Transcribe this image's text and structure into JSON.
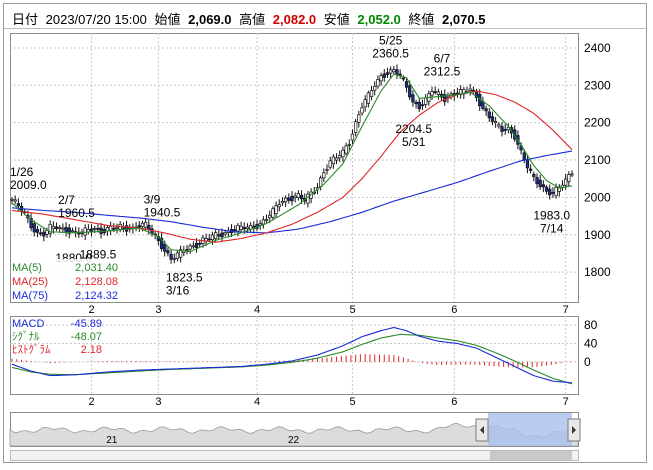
{
  "header": {
    "date_label": "日付",
    "date_value": "2023/07/20 15:00",
    "open_label": "始値",
    "open_value": "2,069.0",
    "high_label": "高値",
    "high_value": "2,082.0",
    "low_label": "安値",
    "low_value": "2,052.0",
    "close_label": "終値",
    "close_value": "2,070.5"
  },
  "colors": {
    "up": "#ffffff",
    "down": "#1f2f8c",
    "high_text": "#cc0000",
    "low_text": "#008800",
    "ma5": "#2a8a2a",
    "ma25": "#e0262a",
    "ma75": "#1a2bd8",
    "macd": "#1a2bd8",
    "signal": "#2a8a2a",
    "hist": "#e0262a",
    "grid": "#c8c8c8",
    "nav_fill": "#a9c1ee"
  },
  "legend_price": [
    {
      "label": "MA(5)",
      "value": "2,031.40",
      "color": "#2a8a2a"
    },
    {
      "label": "MA(25)",
      "value": "2,128.08",
      "color": "#e0262a"
    },
    {
      "label": "MA(75)",
      "value": "2,124.32",
      "color": "#1a2bd8"
    }
  ],
  "legend_macd": [
    {
      "label": "MACD",
      "value": "-45.89",
      "color": "#1a2bd8"
    },
    {
      "label": "ｼｸﾞﾅﾙ",
      "value": "-48.07",
      "color": "#2a8a2a"
    },
    {
      "label": "ﾋｽﾄｸﾞﾗﾑ",
      "value": "2.18",
      "color": "#e0262a"
    }
  ],
  "navigator": {
    "year_labels": [
      {
        "text": "21",
        "x": 0.18
      },
      {
        "text": "22",
        "x": 0.5
      }
    ]
  },
  "chart_data": [
    {
      "type": "candlestick",
      "ylim": [
        1720,
        2440
      ],
      "y_ticks": [
        1800,
        1900,
        2000,
        2100,
        2200,
        2300,
        2400
      ],
      "x_month_labels": [
        {
          "text": "2",
          "day": 25
        },
        {
          "text": "3",
          "day": 46
        },
        {
          "text": "4",
          "day": 77
        },
        {
          "text": "5",
          "day": 107
        },
        {
          "text": "6",
          "day": 139
        },
        {
          "text": "7",
          "day": 174
        }
      ],
      "annotations": [
        {
          "date": "1/26",
          "value": "2009.0",
          "day": 0,
          "price": 2009
        },
        {
          "date": "2/7",
          "value": "1960.5",
          "day": 12,
          "price": 1960.5
        },
        {
          "date": "",
          "value": "1880.0",
          "day": 13,
          "price": 1880
        },
        {
          "date": "",
          "value": "1889.5",
          "day": 20,
          "price": 1889.5
        },
        {
          "date": "3/9",
          "value": "1940.5",
          "day": 42,
          "price": 1940.5
        },
        {
          "date": "3/16",
          "value": "1823.5",
          "day": 49,
          "price": 1823.5
        },
        {
          "date": "5/25",
          "value": "2360.5",
          "day": 119,
          "price": 2360.5
        },
        {
          "date": "6/7",
          "value": "2312.5",
          "day": 132,
          "price": 2312.5
        },
        {
          "date": "5/31",
          "value": "2204.5",
          "day": 125,
          "price": 2204.5
        },
        {
          "date": "7/14",
          "value": "1983.0",
          "day": 169,
          "price": 1983
        }
      ],
      "ohlc_anchors": [
        [
          0,
          1995
        ],
        [
          2,
          1975
        ],
        [
          4,
          1955
        ],
        [
          6,
          1925
        ],
        [
          8,
          1905
        ],
        [
          10,
          1902
        ],
        [
          12,
          1918
        ],
        [
          14,
          1920
        ],
        [
          16,
          1915
        ],
        [
          18,
          1912
        ],
        [
          20,
          1905
        ],
        [
          22,
          1905
        ],
        [
          24,
          1912
        ],
        [
          26,
          1918
        ],
        [
          28,
          1910
        ],
        [
          30,
          1915
        ],
        [
          32,
          1918
        ],
        [
          34,
          1920
        ],
        [
          36,
          1918
        ],
        [
          38,
          1918
        ],
        [
          40,
          1925
        ],
        [
          42,
          1925
        ],
        [
          44,
          1905
        ],
        [
          46,
          1885
        ],
        [
          48,
          1860
        ],
        [
          50,
          1835
        ],
        [
          52,
          1845
        ],
        [
          54,
          1858
        ],
        [
          56,
          1868
        ],
        [
          58,
          1875
        ],
        [
          60,
          1885
        ],
        [
          62,
          1890
        ],
        [
          64,
          1898
        ],
        [
          66,
          1902
        ],
        [
          68,
          1910
        ],
        [
          70,
          1915
        ],
        [
          72,
          1918
        ],
        [
          74,
          1918
        ],
        [
          76,
          1922
        ],
        [
          78,
          1930
        ],
        [
          80,
          1945
        ],
        [
          82,
          1960
        ],
        [
          84,
          1985
        ],
        [
          86,
          1995
        ],
        [
          88,
          2000
        ],
        [
          90,
          2005
        ],
        [
          92,
          1990
        ],
        [
          94,
          2010
        ],
        [
          96,
          2030
        ],
        [
          98,
          2070
        ],
        [
          100,
          2095
        ],
        [
          102,
          2105
        ],
        [
          104,
          2120
        ],
        [
          106,
          2150
        ],
        [
          108,
          2200
        ],
        [
          110,
          2245
        ],
        [
          112,
          2270
        ],
        [
          114,
          2300
        ],
        [
          116,
          2325
        ],
        [
          118,
          2335
        ],
        [
          120,
          2340
        ],
        [
          122,
          2325
        ],
        [
          124,
          2295
        ],
        [
          126,
          2255
        ],
        [
          128,
          2245
        ],
        [
          130,
          2260
        ],
        [
          132,
          2285
        ],
        [
          134,
          2275
        ],
        [
          136,
          2265
        ],
        [
          138,
          2275
        ],
        [
          140,
          2280
        ],
        [
          142,
          2282
        ],
        [
          144,
          2290
        ],
        [
          146,
          2270
        ],
        [
          148,
          2240
        ],
        [
          150,
          2215
        ],
        [
          152,
          2195
        ],
        [
          154,
          2180
        ],
        [
          156,
          2185
        ],
        [
          158,
          2165
        ],
        [
          160,
          2120
        ],
        [
          162,
          2080
        ],
        [
          164,
          2050
        ],
        [
          166,
          2035
        ],
        [
          168,
          2018
        ],
        [
          170,
          2010
        ],
        [
          172,
          2025
        ],
        [
          174,
          2045
        ],
        [
          176,
          2070
        ]
      ],
      "ma5_anchors": [
        [
          0,
          1985
        ],
        [
          6,
          1940
        ],
        [
          12,
          1908
        ],
        [
          20,
          1905
        ],
        [
          30,
          1910
        ],
        [
          40,
          1918
        ],
        [
          46,
          1895
        ],
        [
          50,
          1860
        ],
        [
          56,
          1855
        ],
        [
          64,
          1885
        ],
        [
          72,
          1905
        ],
        [
          80,
          1930
        ],
        [
          90,
          1980
        ],
        [
          98,
          2035
        ],
        [
          104,
          2090
        ],
        [
          110,
          2190
        ],
        [
          116,
          2285
        ],
        [
          120,
          2330
        ],
        [
          124,
          2320
        ],
        [
          128,
          2265
        ],
        [
          134,
          2270
        ],
        [
          140,
          2275
        ],
        [
          144,
          2282
        ],
        [
          150,
          2245
        ],
        [
          156,
          2190
        ],
        [
          160,
          2140
        ],
        [
          164,
          2085
        ],
        [
          168,
          2045
        ],
        [
          172,
          2025
        ],
        [
          176,
          2031
        ]
      ],
      "ma25_anchors": [
        [
          0,
          1965
        ],
        [
          10,
          1955
        ],
        [
          20,
          1940
        ],
        [
          30,
          1925
        ],
        [
          40,
          1918
        ],
        [
          48,
          1905
        ],
        [
          56,
          1888
        ],
        [
          64,
          1880
        ],
        [
          72,
          1890
        ],
        [
          80,
          1905
        ],
        [
          88,
          1928
        ],
        [
          96,
          1960
        ],
        [
          104,
          2000
        ],
        [
          110,
          2050
        ],
        [
          116,
          2110
        ],
        [
          122,
          2175
        ],
        [
          128,
          2220
        ],
        [
          134,
          2255
        ],
        [
          140,
          2275
        ],
        [
          146,
          2285
        ],
        [
          152,
          2275
        ],
        [
          158,
          2255
        ],
        [
          164,
          2225
        ],
        [
          170,
          2180
        ],
        [
          176,
          2128
        ]
      ],
      "ma75_anchors": [
        [
          0,
          1972
        ],
        [
          10,
          1965
        ],
        [
          20,
          1960
        ],
        [
          30,
          1952
        ],
        [
          40,
          1945
        ],
        [
          50,
          1935
        ],
        [
          60,
          1920
        ],
        [
          70,
          1908
        ],
        [
          80,
          1905
        ],
        [
          90,
          1915
        ],
        [
          100,
          1935
        ],
        [
          110,
          1960
        ],
        [
          120,
          1990
        ],
        [
          130,
          2015
        ],
        [
          140,
          2040
        ],
        [
          150,
          2070
        ],
        [
          160,
          2098
        ],
        [
          168,
          2112
        ],
        [
          176,
          2124
        ]
      ]
    },
    {
      "type": "macd",
      "ylim": [
        -70,
        100
      ],
      "y_ticks": [
        0,
        40,
        80
      ],
      "x_month_labels": [
        {
          "text": "2",
          "day": 25
        },
        {
          "text": "3",
          "day": 46
        },
        {
          "text": "4",
          "day": 77
        },
        {
          "text": "5",
          "day": 107
        },
        {
          "text": "6",
          "day": 139
        },
        {
          "text": "7",
          "day": 174
        }
      ],
      "macd_anchors": [
        [
          0,
          -5
        ],
        [
          6,
          -20
        ],
        [
          12,
          -30
        ],
        [
          20,
          -28
        ],
        [
          30,
          -22
        ],
        [
          40,
          -18
        ],
        [
          48,
          -16
        ],
        [
          56,
          -14
        ],
        [
          64,
          -12
        ],
        [
          72,
          -10
        ],
        [
          80,
          -5
        ],
        [
          88,
          2
        ],
        [
          96,
          15
        ],
        [
          104,
          35
        ],
        [
          110,
          55
        ],
        [
          116,
          68
        ],
        [
          120,
          75
        ],
        [
          124,
          68
        ],
        [
          128,
          56
        ],
        [
          134,
          45
        ],
        [
          140,
          40
        ],
        [
          146,
          30
        ],
        [
          152,
          10
        ],
        [
          158,
          -10
        ],
        [
          164,
          -30
        ],
        [
          170,
          -42
        ],
        [
          176,
          -45.89
        ]
      ],
      "signal_anchors": [
        [
          0,
          -12
        ],
        [
          6,
          -22
        ],
        [
          12,
          -27
        ],
        [
          20,
          -28
        ],
        [
          30,
          -24
        ],
        [
          40,
          -20
        ],
        [
          48,
          -17
        ],
        [
          56,
          -15
        ],
        [
          64,
          -13
        ],
        [
          72,
          -11
        ],
        [
          80,
          -7
        ],
        [
          88,
          -1
        ],
        [
          96,
          8
        ],
        [
          104,
          22
        ],
        [
          110,
          38
        ],
        [
          116,
          52
        ],
        [
          122,
          60
        ],
        [
          128,
          58
        ],
        [
          134,
          52
        ],
        [
          140,
          46
        ],
        [
          146,
          36
        ],
        [
          152,
          20
        ],
        [
          158,
          2
        ],
        [
          164,
          -18
        ],
        [
          170,
          -36
        ],
        [
          176,
          -48.07
        ]
      ],
      "hist_anchors": [
        [
          0,
          7
        ],
        [
          6,
          2
        ],
        [
          12,
          -3
        ],
        [
          20,
          0
        ],
        [
          30,
          2
        ],
        [
          40,
          2
        ],
        [
          48,
          1
        ],
        [
          56,
          1
        ],
        [
          64,
          1
        ],
        [
          72,
          1
        ],
        [
          80,
          2
        ],
        [
          88,
          3
        ],
        [
          96,
          7
        ],
        [
          104,
          13
        ],
        [
          110,
          17
        ],
        [
          116,
          16
        ],
        [
          120,
          15
        ],
        [
          124,
          8
        ],
        [
          128,
          -2
        ],
        [
          134,
          -7
        ],
        [
          140,
          -6
        ],
        [
          146,
          -6
        ],
        [
          152,
          -10
        ],
        [
          158,
          -12
        ],
        [
          164,
          -12
        ],
        [
          170,
          -6
        ],
        [
          176,
          2.18
        ]
      ]
    }
  ]
}
